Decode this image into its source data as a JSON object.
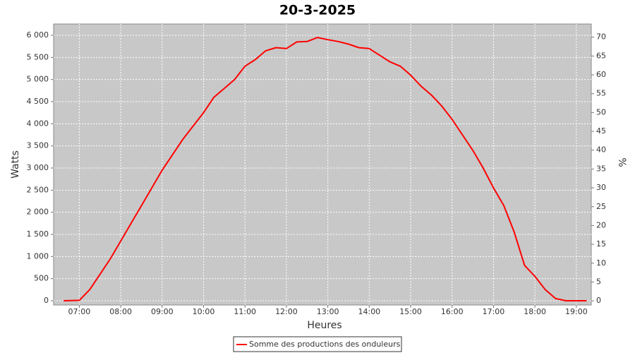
{
  "chart_data": {
    "type": "line",
    "title": "20-3-2025",
    "x_label": "Heures",
    "y_label": "Watts",
    "y2_label": "%",
    "x": [
      6.62,
      7.0,
      7.25,
      7.5,
      7.75,
      8.0,
      8.25,
      8.5,
      8.75,
      9.0,
      9.25,
      9.5,
      9.75,
      10.0,
      10.25,
      10.5,
      10.75,
      11.0,
      11.25,
      11.5,
      11.75,
      12.0,
      12.25,
      12.5,
      12.75,
      13.0,
      13.25,
      13.5,
      13.75,
      14.0,
      14.25,
      14.5,
      14.75,
      15.0,
      15.25,
      15.5,
      15.75,
      16.0,
      16.25,
      16.5,
      16.75,
      17.0,
      17.25,
      17.5,
      17.75,
      18.0,
      18.25,
      18.5,
      18.75,
      19.25
    ],
    "series": [
      {
        "name": "Somme des productions des onduleurs",
        "color": "#ff0000",
        "values": [
          0,
          10,
          250,
          600,
          950,
          1350,
          1750,
          2150,
          2550,
          2950,
          3300,
          3650,
          3950,
          4250,
          4600,
          4800,
          5000,
          5300,
          5450,
          5650,
          5720,
          5700,
          5850,
          5860,
          5950,
          5900,
          5860,
          5800,
          5720,
          5700,
          5550,
          5400,
          5300,
          5100,
          4850,
          4650,
          4400,
          4100,
          3750,
          3400,
          3000,
          2550,
          2150,
          1550,
          800,
          550,
          250,
          50,
          0,
          0
        ]
      }
    ],
    "xlim": [
      6.38,
      19.36
    ],
    "xticks": [
      {
        "value": 7,
        "label": "07:00"
      },
      {
        "value": 8,
        "label": "08:00"
      },
      {
        "value": 9,
        "label": "09:00"
      },
      {
        "value": 10,
        "label": "10:00"
      },
      {
        "value": 11,
        "label": "11:00"
      },
      {
        "value": 12,
        "label": "12:00"
      },
      {
        "value": 13,
        "label": "13:00"
      },
      {
        "value": 14,
        "label": "14:00"
      },
      {
        "value": 15,
        "label": "15:00"
      },
      {
        "value": 16,
        "label": "16:00"
      },
      {
        "value": 17,
        "label": "17:00"
      },
      {
        "value": 18,
        "label": "18:00"
      },
      {
        "value": 19,
        "label": "19:00"
      }
    ],
    "ylim": [
      -96,
      6255
    ],
    "yticks": [
      0,
      500,
      {
        "value": 1000,
        "label": "1 000"
      },
      {
        "value": 1500,
        "label": "1 500"
      },
      {
        "value": 2000,
        "label": "2 000"
      },
      {
        "value": 2500,
        "label": "2 500"
      },
      {
        "value": 3000,
        "label": "3 000"
      },
      {
        "value": 3500,
        "label": "3 500"
      },
      {
        "value": 4000,
        "label": "4 000"
      },
      {
        "value": 4500,
        "label": "4 500"
      },
      {
        "value": 5000,
        "label": "5 000"
      },
      {
        "value": 5500,
        "label": "5 500"
      },
      {
        "value": 6000,
        "label": "6 000"
      }
    ],
    "y2lim": [
      -1.1,
      73.5
    ],
    "y2ticks": [
      0,
      5,
      10,
      15,
      20,
      25,
      30,
      35,
      40,
      45,
      50,
      55,
      60,
      65,
      70
    ],
    "grid": true,
    "plot_background": "#c8c8c8",
    "legend": "bottom"
  }
}
